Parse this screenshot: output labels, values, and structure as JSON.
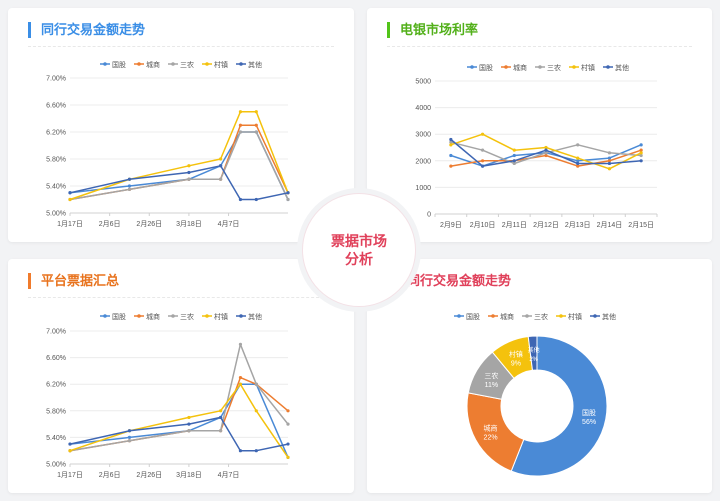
{
  "colors": {
    "series": [
      "#4a8ad6",
      "#ed7d31",
      "#a5a5a5",
      "#f4c20d",
      "#3e66b3"
    ],
    "title_bar": [
      "#3a8ee6",
      "#52c41a",
      "#f07b2c"
    ],
    "title_text": [
      "#3a8ee6",
      "#52b01a",
      "#e8731e",
      "#e0405a"
    ],
    "badge_text": "#e0405a"
  },
  "center_badge": "票据市场分析",
  "panels": [
    {
      "title": "同行交易金额走势"
    },
    {
      "title": "电银市场利率"
    },
    {
      "title": "平台票据汇总"
    },
    {
      "title": "同行交易金额走势"
    }
  ],
  "chart_data": [
    {
      "type": "line",
      "title": "同行交易金额走势",
      "categories": [
        "1月17日",
        "2月6日",
        "2月26日",
        "3月18日",
        "4月7日"
      ],
      "x": [
        0,
        1.5,
        3,
        3.8,
        4.3,
        4.7,
        5.5
      ],
      "ylim": [
        5.0,
        7.0
      ],
      "yticks": [
        "5.00%",
        "5.40%",
        "5.80%",
        "6.20%",
        "6.60%",
        "7.00%"
      ],
      "series": [
        {
          "name": "国股",
          "values": [
            5.3,
            5.4,
            5.5,
            5.7,
            6.2,
            6.2,
            5.2
          ]
        },
        {
          "name": "城商",
          "values": [
            5.2,
            5.35,
            5.5,
            5.5,
            6.3,
            6.3,
            5.3
          ]
        },
        {
          "name": "三农",
          "values": [
            5.2,
            5.35,
            5.5,
            5.5,
            6.2,
            6.2,
            5.2
          ]
        },
        {
          "name": "村镇",
          "values": [
            5.2,
            5.5,
            5.7,
            5.8,
            6.5,
            6.5,
            5.3
          ]
        },
        {
          "name": "其他",
          "values": [
            5.3,
            5.5,
            5.6,
            5.7,
            5.2,
            5.2,
            5.3
          ]
        }
      ]
    },
    {
      "type": "line",
      "title": "电银市场利率",
      "categories": [
        "2月9日",
        "2月10日",
        "2月11日",
        "2月12日",
        "2月13日",
        "2月14日",
        "2月15日"
      ],
      "ylim": [
        0,
        5000
      ],
      "yticks": [
        "0",
        "1000",
        "2000",
        "3000",
        "4000",
        "5000"
      ],
      "series": [
        {
          "name": "国股",
          "values": [
            2200,
            1800,
            2200,
            2300,
            2000,
            2100,
            2600
          ]
        },
        {
          "name": "城商",
          "values": [
            1800,
            2000,
            2000,
            2200,
            1800,
            2000,
            2400
          ]
        },
        {
          "name": "三农",
          "values": [
            2700,
            2400,
            1900,
            2300,
            2600,
            2300,
            2200
          ]
        },
        {
          "name": "村镇",
          "values": [
            2600,
            3000,
            2400,
            2500,
            2100,
            1700,
            2300
          ]
        },
        {
          "name": "其他",
          "values": [
            2800,
            1800,
            2000,
            2400,
            1900,
            1900,
            2000
          ]
        }
      ]
    },
    {
      "type": "line",
      "title": "平台票据汇总",
      "categories": [
        "1月17日",
        "2月6日",
        "2月26日",
        "3月18日",
        "4月7日"
      ],
      "x": [
        0,
        1.5,
        3,
        3.8,
        4.3,
        4.7,
        5.5
      ],
      "ylim": [
        5.0,
        7.0
      ],
      "yticks": [
        "5.00%",
        "5.40%",
        "5.80%",
        "6.20%",
        "6.60%",
        "7.00%"
      ],
      "series": [
        {
          "name": "国股",
          "values": [
            5.3,
            5.4,
            5.5,
            5.7,
            6.2,
            6.2,
            5.1
          ]
        },
        {
          "name": "城商",
          "values": [
            5.2,
            5.35,
            5.5,
            5.5,
            6.3,
            6.2,
            5.8
          ]
        },
        {
          "name": "三农",
          "values": [
            5.2,
            5.35,
            5.5,
            5.5,
            6.8,
            6.2,
            5.6
          ]
        },
        {
          "name": "村镇",
          "values": [
            5.2,
            5.5,
            5.7,
            5.8,
            6.2,
            5.8,
            5.1
          ]
        },
        {
          "name": "其他",
          "values": [
            5.3,
            5.5,
            5.6,
            5.7,
            5.2,
            5.2,
            5.3
          ]
        }
      ]
    },
    {
      "type": "pie",
      "title": "同行交易金额走势",
      "donut": true,
      "slices": [
        {
          "name": "国股",
          "value": 56,
          "label": "56%"
        },
        {
          "name": "城商",
          "value": 22,
          "label": "22%"
        },
        {
          "name": "三农",
          "value": 11,
          "label": "11%"
        },
        {
          "name": "村镇",
          "value": 9,
          "label": "9%"
        },
        {
          "name": "其他",
          "value": 2,
          "label": "2%"
        }
      ]
    }
  ]
}
